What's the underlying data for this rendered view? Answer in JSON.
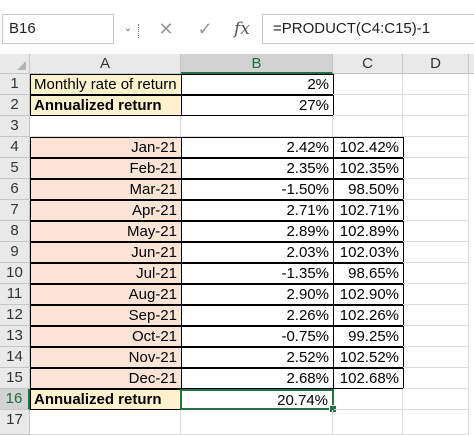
{
  "formula_bar": {
    "name_box": "B16",
    "caret": "⌄",
    "cancel_glyph": "✕",
    "enter_glyph": "✓",
    "fx_glyph": "fx",
    "formula": "=PRODUCT(C4:C15)-1"
  },
  "columns": [
    "A",
    "B",
    "C",
    "D"
  ],
  "rows": [
    {
      "num": "1",
      "a": "Monthly rate of return",
      "b": "2%",
      "c": ""
    },
    {
      "num": "2",
      "a": "Annualized return",
      "b": "27%",
      "c": ""
    },
    {
      "num": "3",
      "a": "",
      "b": "",
      "c": ""
    },
    {
      "num": "4",
      "a": "Jan-21",
      "b": "2.42%",
      "c": "102.42%"
    },
    {
      "num": "5",
      "a": "Feb-21",
      "b": "2.35%",
      "c": "102.35%"
    },
    {
      "num": "6",
      "a": "Mar-21",
      "b": "-1.50%",
      "c": "98.50%"
    },
    {
      "num": "7",
      "a": "Apr-21",
      "b": "2.71%",
      "c": "102.71%"
    },
    {
      "num": "8",
      "a": "May-21",
      "b": "2.89%",
      "c": "102.89%"
    },
    {
      "num": "9",
      "a": "Jun-21",
      "b": "2.03%",
      "c": "102.03%"
    },
    {
      "num": "10",
      "a": "Jul-21",
      "b": "-1.35%",
      "c": "98.65%"
    },
    {
      "num": "11",
      "a": "Aug-21",
      "b": "2.90%",
      "c": "102.90%"
    },
    {
      "num": "12",
      "a": "Sep-21",
      "b": "2.26%",
      "c": "102.26%"
    },
    {
      "num": "13",
      "a": "Oct-21",
      "b": "-0.75%",
      "c": "99.25%"
    },
    {
      "num": "14",
      "a": "Nov-21",
      "b": "2.52%",
      "c": "102.52%"
    },
    {
      "num": "15",
      "a": "Dec-21",
      "b": "2.68%",
      "c": "102.68%"
    },
    {
      "num": "16",
      "a": "Annualized return",
      "b": "20.74%",
      "c": ""
    },
    {
      "num": "17",
      "a": "",
      "b": "",
      "c": ""
    }
  ],
  "colors": {
    "yellow_fill": "#fff2cc",
    "peach_fill": "#fbe4d6",
    "selection_green": "#217346"
  },
  "active_cell": "B16",
  "active_column": "B",
  "active_row": "16"
}
